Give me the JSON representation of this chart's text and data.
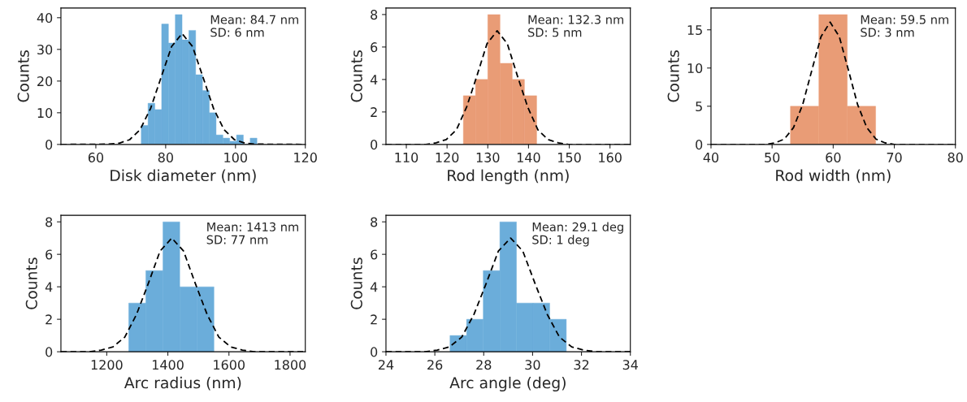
{
  "chart_data": [
    {
      "type": "histogram",
      "xlabel": "Disk diameter (nm)",
      "ylabel": "Counts",
      "color": "#64a9d9",
      "bins": [
        73.0,
        74.95,
        76.9,
        78.85,
        80.8,
        82.75,
        84.7,
        86.65,
        88.6,
        90.55,
        92.5,
        94.45,
        96.4,
        98.35,
        100.3,
        102.25,
        104.2,
        106.15
      ],
      "values": [
        6,
        13,
        11,
        38,
        32,
        41,
        33,
        36,
        22,
        17,
        10,
        3,
        2,
        1,
        3,
        0,
        2
      ],
      "xlim": [
        50,
        120
      ],
      "xticks": [
        60,
        80,
        100,
        120
      ],
      "ylim": [
        0,
        43.05
      ],
      "yticks": [
        0,
        10,
        20,
        30,
        40
      ],
      "annotations": [
        "Mean: 84.7 nm",
        "SD: 6 nm"
      ],
      "series": [
        {
          "type": "line",
          "color": "#000000",
          "line_style": "dashed",
          "x": [
            50,
            63.7,
            66.7,
            69.7,
            72.7,
            75.7,
            78.7,
            81.7,
            84.7,
            87.7,
            90.7,
            93.7,
            96.7,
            99.7,
            102.7,
            105.7,
            120
          ],
          "values": [
            0,
            0.1,
            0.4,
            1.5,
            4.7,
            11.4,
            21.2,
            30.9,
            35,
            30.9,
            21.2,
            11.4,
            4.7,
            1.5,
            0.4,
            0.1,
            0
          ]
        }
      ]
    },
    {
      "type": "histogram",
      "xlabel": "Rod length (nm)",
      "ylabel": "Counts",
      "color": "#e8976f",
      "bins": [
        124,
        127,
        130,
        133,
        136,
        139,
        142
      ],
      "values": [
        3,
        4,
        8,
        5,
        4,
        3
      ],
      "xlim": [
        105,
        165
      ],
      "xticks": [
        110,
        120,
        130,
        140,
        150,
        160
      ],
      "ylim": [
        0,
        8.4
      ],
      "yticks": [
        0,
        2,
        4,
        6,
        8
      ],
      "annotations": [
        "Mean: 132.3 nm",
        "SD: 5 nm"
      ],
      "series": [
        {
          "type": "line",
          "color": "#000000",
          "line_style": "dashed",
          "x": [
            105,
            114.8,
            117.3,
            119.8,
            122.3,
            124.8,
            127.3,
            129.8,
            132.3,
            134.8,
            137.3,
            139.8,
            142.3,
            144.8,
            147.3,
            149.8,
            165
          ],
          "values": [
            0,
            0.0,
            0.1,
            0.3,
            0.9,
            2.3,
            4.2,
            6.2,
            7,
            6.2,
            4.2,
            2.3,
            0.9,
            0.3,
            0.1,
            0.0,
            0
          ]
        }
      ]
    },
    {
      "type": "histogram",
      "xlabel": "Rod width (nm)",
      "ylabel": "Counts",
      "color": "#e8976f",
      "bins": [
        53.0,
        57.65,
        62.3,
        66.95
      ],
      "values": [
        5,
        17,
        5
      ],
      "xlim": [
        40,
        80
      ],
      "xticks": [
        40,
        50,
        60,
        70,
        80
      ],
      "ylim": [
        0,
        17.85
      ],
      "yticks": [
        0,
        5,
        10,
        15
      ],
      "annotations": [
        "Mean: 59.5 nm",
        "SD: 3 nm"
      ],
      "series": [
        {
          "type": "line",
          "color": "#000000",
          "line_style": "dashed",
          "x": [
            40,
            49,
            50.5,
            52,
            53.5,
            55,
            56.5,
            58,
            59.5,
            61,
            62.5,
            64,
            65.5,
            67,
            68.5,
            70,
            80
          ],
          "values": [
            0,
            0.0,
            0.2,
            0.7,
            2.2,
            5.2,
            9.7,
            14.1,
            16,
            14.1,
            9.7,
            5.2,
            2.2,
            0.7,
            0.2,
            0.0,
            0
          ]
        }
      ]
    },
    {
      "type": "histogram",
      "xlabel": "Arc radius (nm)",
      "ylabel": "Counts",
      "color": "#64a9d9",
      "bins": [
        1272,
        1328,
        1384,
        1439,
        1495,
        1551
      ],
      "values": [
        3,
        5,
        8,
        4,
        4
      ],
      "xlim": [
        1050,
        1850
      ],
      "xticks": [
        1200,
        1400,
        1600,
        1800
      ],
      "ylim": [
        0,
        8.4
      ],
      "yticks": [
        0,
        2,
        4,
        6,
        8
      ],
      "annotations": [
        "Mean: 1413 nm",
        "SD: 77 nm"
      ],
      "series": [
        {
          "type": "line",
          "color": "#000000",
          "line_style": "dashed",
          "x": [
            1050,
            1143.5,
            1182,
            1220.5,
            1259,
            1297.5,
            1336,
            1374.5,
            1413,
            1451.5,
            1490,
            1528.5,
            1567,
            1605.5,
            1644,
            1682.5,
            1850
          ],
          "values": [
            0,
            0.0,
            0.1,
            0.3,
            0.9,
            2.3,
            4.2,
            6.2,
            7,
            6.2,
            4.2,
            2.3,
            0.9,
            0.3,
            0.1,
            0.0,
            0
          ]
        }
      ]
    },
    {
      "type": "histogram",
      "xlabel": "Arc angle (deg)",
      "ylabel": "Counts",
      "color": "#64a9d9",
      "bins": [
        26.62,
        27.3,
        27.98,
        28.66,
        29.34,
        30.02,
        30.7,
        31.38
      ],
      "values": [
        1,
        2,
        5,
        8,
        3,
        3,
        2
      ],
      "xlim": [
        24,
        34
      ],
      "xticks": [
        24,
        26,
        28,
        30,
        32,
        34
      ],
      "ylim": [
        0,
        8.4
      ],
      "yticks": [
        0,
        2,
        4,
        6,
        8
      ],
      "annotations": [
        "Mean: 29.1 deg",
        "SD: 1 deg"
      ],
      "series": [
        {
          "type": "line",
          "color": "#000000",
          "line_style": "dashed",
          "x": [
            24,
            25.6,
            26.1,
            26.6,
            27.1,
            27.6,
            28.1,
            28.6,
            29.1,
            29.6,
            30.1,
            30.6,
            31.1,
            31.6,
            32.1,
            32.6,
            34
          ],
          "values": [
            0,
            0.0,
            0.1,
            0.3,
            0.9,
            2.3,
            4.2,
            6.2,
            7,
            6.2,
            4.2,
            2.3,
            0.9,
            0.3,
            0.1,
            0.0,
            0
          ]
        }
      ]
    }
  ]
}
